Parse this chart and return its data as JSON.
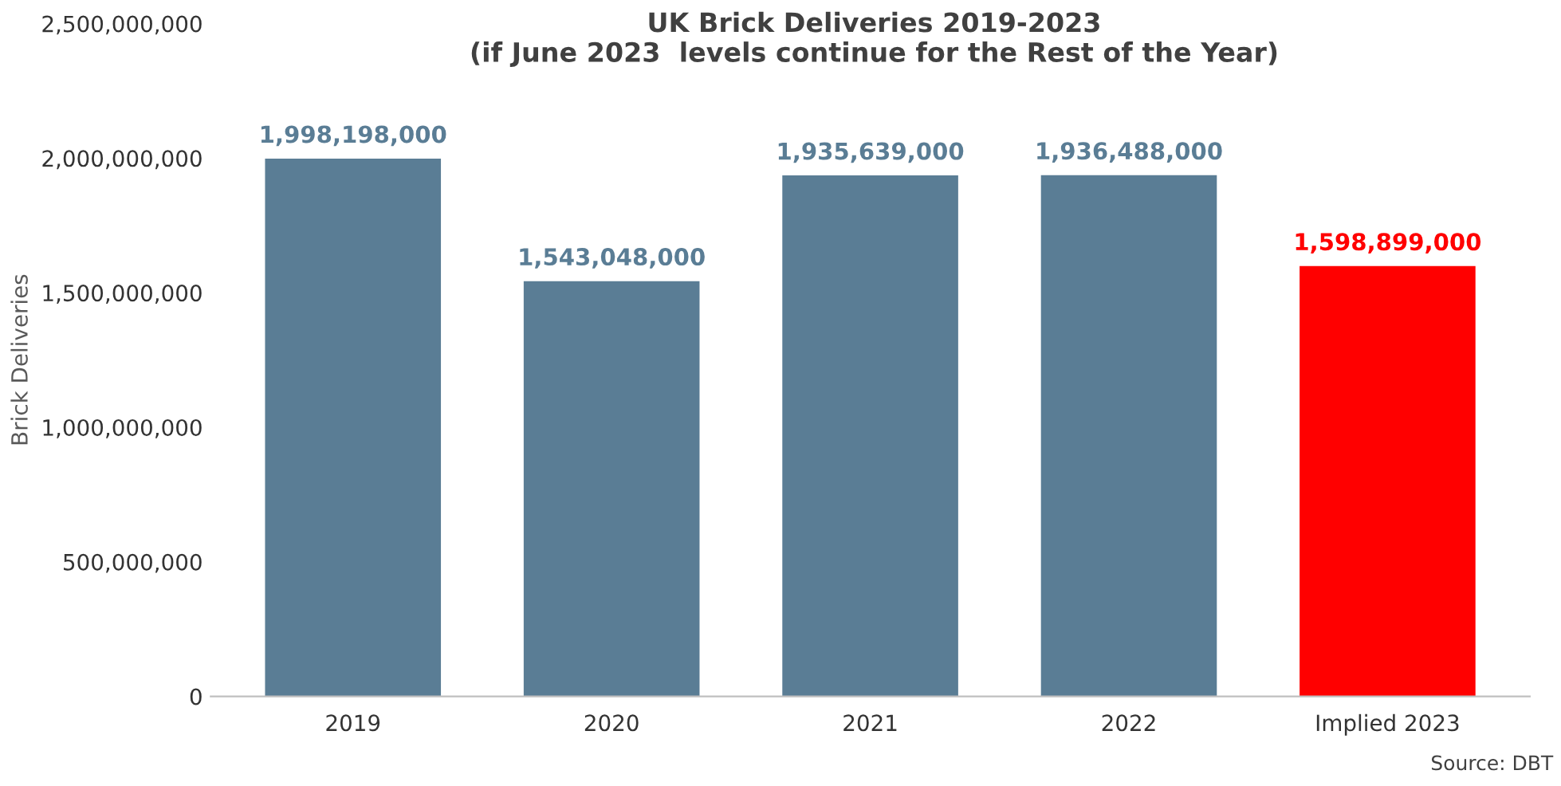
{
  "chart_data": {
    "type": "bar",
    "title": "UK Brick Deliveries 2019-2023\n(if June 2023  levels continue for the Rest of the Year)",
    "ylabel": "Brick Deliveries",
    "categories": [
      "2019",
      "2020",
      "2021",
      "2022",
      "Implied 2023"
    ],
    "values": [
      1998198000,
      1543048000,
      1935639000,
      1936488000,
      1598899000
    ],
    "colors": [
      "#5a7d95",
      "#5a7d95",
      "#5a7d95",
      "#5a7d95",
      "#ff0000"
    ],
    "value_labels": [
      "1,998,198,000",
      "1,543,048,000",
      "1,935,639,000",
      "1,936,488,000",
      "1,598,899,000"
    ],
    "ylim": [
      0,
      2500000000
    ],
    "yticks": [
      {
        "value": 0,
        "label": "0"
      },
      {
        "value": 500000000,
        "label": "500,000,000"
      },
      {
        "value": 1000000000,
        "label": "1,000,000,000"
      },
      {
        "value": 1500000000,
        "label": "1,500,000,000"
      },
      {
        "value": 2000000000,
        "label": "2,000,000,000"
      },
      {
        "value": 2500000000,
        "label": "2,500,000,000"
      }
    ],
    "grid": false,
    "annotations": [
      "Source: DBT"
    ]
  }
}
